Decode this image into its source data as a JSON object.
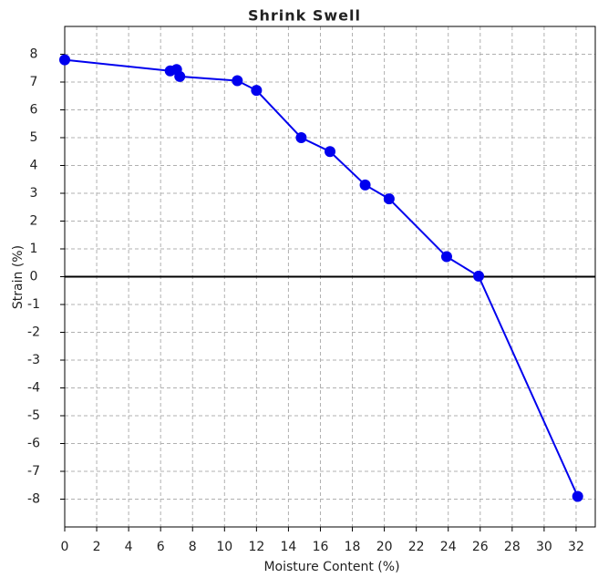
{
  "chart_data": {
    "type": "line",
    "title": "Shrink Swell",
    "x_label": "Moisture Content (%)",
    "y_label": "Strain (%)",
    "series": [
      {
        "name": "Strain",
        "color": "#0000ee",
        "x": [
          0,
          6.6,
          7.0,
          7.2,
          10.8,
          12.0,
          14.8,
          16.6,
          18.8,
          20.3,
          23.9,
          25.9,
          32.1
        ],
        "values": [
          7.8,
          7.4,
          7.45,
          7.2,
          7.05,
          6.7,
          5.0,
          4.5,
          3.3,
          2.8,
          0.72,
          0.02,
          -7.9
        ]
      }
    ],
    "xlim": [
      0,
      33.2
    ],
    "xticks": [
      0,
      2,
      4,
      6,
      8,
      10,
      12,
      14,
      16,
      18,
      20,
      22,
      24,
      26,
      28,
      30,
      32
    ],
    "ylim": [
      -9,
      9
    ],
    "yticks": [
      -8,
      -7,
      -6,
      -5,
      -4,
      -3,
      -2,
      -1,
      0,
      1,
      2,
      3,
      4,
      5,
      6,
      7,
      8
    ],
    "grid": true,
    "zero_line": true
  }
}
